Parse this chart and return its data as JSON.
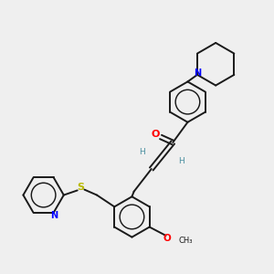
{
  "background_color": "#efefef",
  "bond_color": "#1a1a1a",
  "atom_colors": {
    "O": "#ff0000",
    "N": "#0000ff",
    "S": "#b8b800",
    "H": "#4a8fa0",
    "C": "#1a1a1a"
  },
  "figsize": [
    3.0,
    3.0
  ],
  "dpi": 100,
  "ring_r": 0.52,
  "lw": 1.4
}
